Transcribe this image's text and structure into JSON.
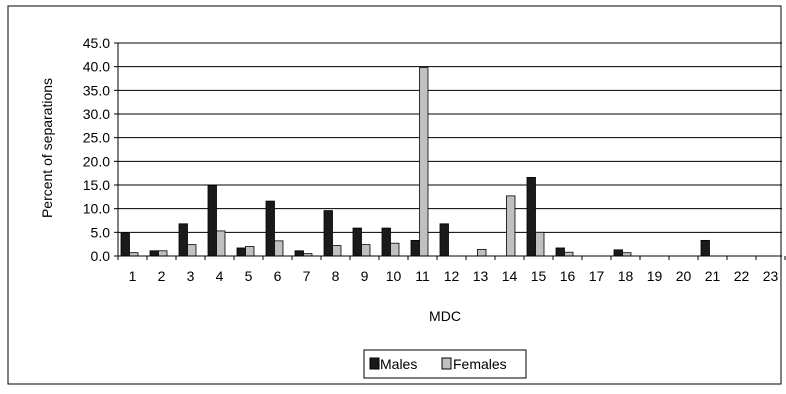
{
  "chart_data": {
    "type": "bar",
    "title": "",
    "xlabel": "MDC",
    "ylabel": "Percent of separations",
    "ylim": [
      0,
      45
    ],
    "yticks": [
      "0.0",
      "5.0",
      "10.0",
      "15.0",
      "20.0",
      "25.0",
      "30.0",
      "35.0",
      "40.0",
      "45.0"
    ],
    "grid": true,
    "legend_position": "bottom-center",
    "categories": [
      "1",
      "2",
      "3",
      "4",
      "5",
      "6",
      "7",
      "8",
      "9",
      "10",
      "11",
      "12",
      "13",
      "14",
      "15",
      "16",
      "17",
      "18",
      "19",
      "20",
      "21",
      "22",
      "23"
    ],
    "series": [
      {
        "name": "Males",
        "color": "#1a1a1a",
        "values": [
          4.9,
          1.1,
          6.8,
          14.9,
          1.7,
          11.6,
          1.1,
          9.6,
          5.9,
          5.9,
          3.3,
          6.8,
          0,
          0,
          16.6,
          1.7,
          0,
          1.3,
          0,
          0,
          3.3,
          0,
          0
        ]
      },
      {
        "name": "Females",
        "color": "#c0c0c0",
        "values": [
          0.7,
          1.1,
          2.4,
          5.3,
          2.0,
          3.2,
          0.5,
          2.2,
          2.4,
          2.7,
          39.8,
          0,
          1.4,
          12.7,
          5.0,
          0.8,
          0,
          0.7,
          0,
          0,
          0,
          0,
          0
        ]
      }
    ]
  }
}
